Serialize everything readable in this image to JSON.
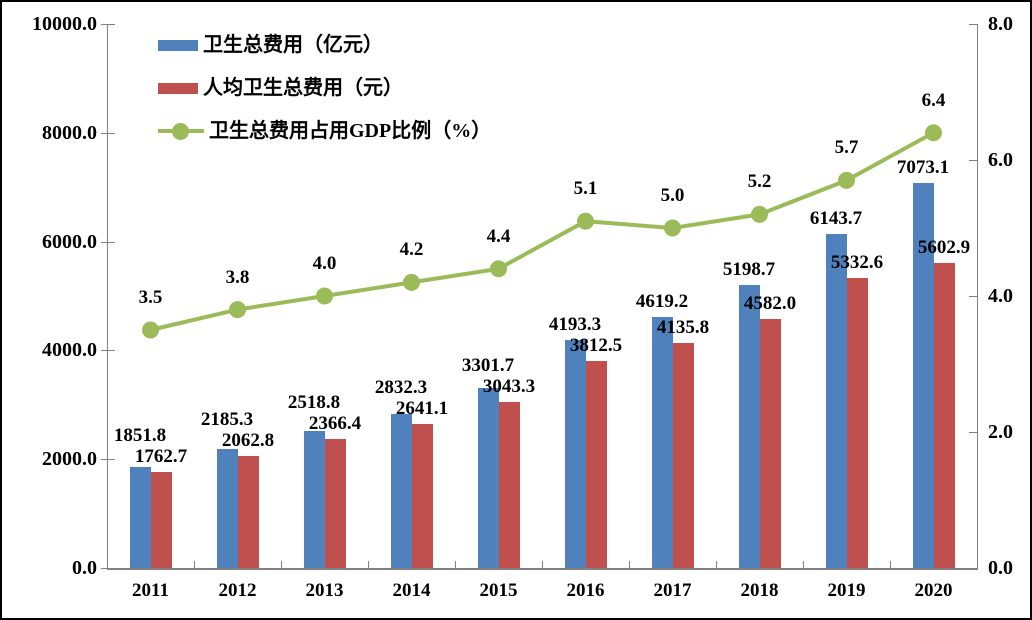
{
  "chart_data": {
    "type": "bar",
    "title": "",
    "categories": [
      "2011",
      "2012",
      "2013",
      "2014",
      "2015",
      "2016",
      "2017",
      "2018",
      "2019",
      "2020"
    ],
    "series": [
      {
        "name": "卫生总费用（亿元）",
        "kind": "bar",
        "axis": "left",
        "color": "#4F81BD",
        "values": [
          1851.8,
          2185.3,
          2518.8,
          2832.3,
          3301.7,
          4193.3,
          4619.2,
          5198.7,
          6143.7,
          7073.1
        ]
      },
      {
        "name": "人均卫生总费用（元）",
        "kind": "bar",
        "axis": "left",
        "color": "#C0504D",
        "values": [
          1762.7,
          2062.8,
          2366.4,
          2641.1,
          3043.3,
          3812.5,
          4135.8,
          4582.0,
          5332.6,
          5602.9
        ]
      },
      {
        "name": "卫生总费用占用GDP比例（%）",
        "kind": "line",
        "axis": "right",
        "color": "#9BBB59",
        "values": [
          3.5,
          3.8,
          4.0,
          4.2,
          4.4,
          5.1,
          5.0,
          5.2,
          5.7,
          6.4
        ]
      }
    ],
    "left_axis": {
      "min": 0,
      "max": 10000,
      "ticks": [
        "0.0",
        "2000.0",
        "4000.0",
        "6000.0",
        "8000.0",
        "10000.0"
      ]
    },
    "right_axis": {
      "min": 0,
      "max": 8,
      "ticks": [
        "0.0",
        "2.0",
        "4.0",
        "6.0",
        "8.0"
      ]
    },
    "legend_position": "top-left",
    "grid": false,
    "data_labels": true,
    "colors": {
      "axis_line": "#808080",
      "text": "#000000",
      "background": "#FFFFFF",
      "border": "#000000"
    }
  }
}
